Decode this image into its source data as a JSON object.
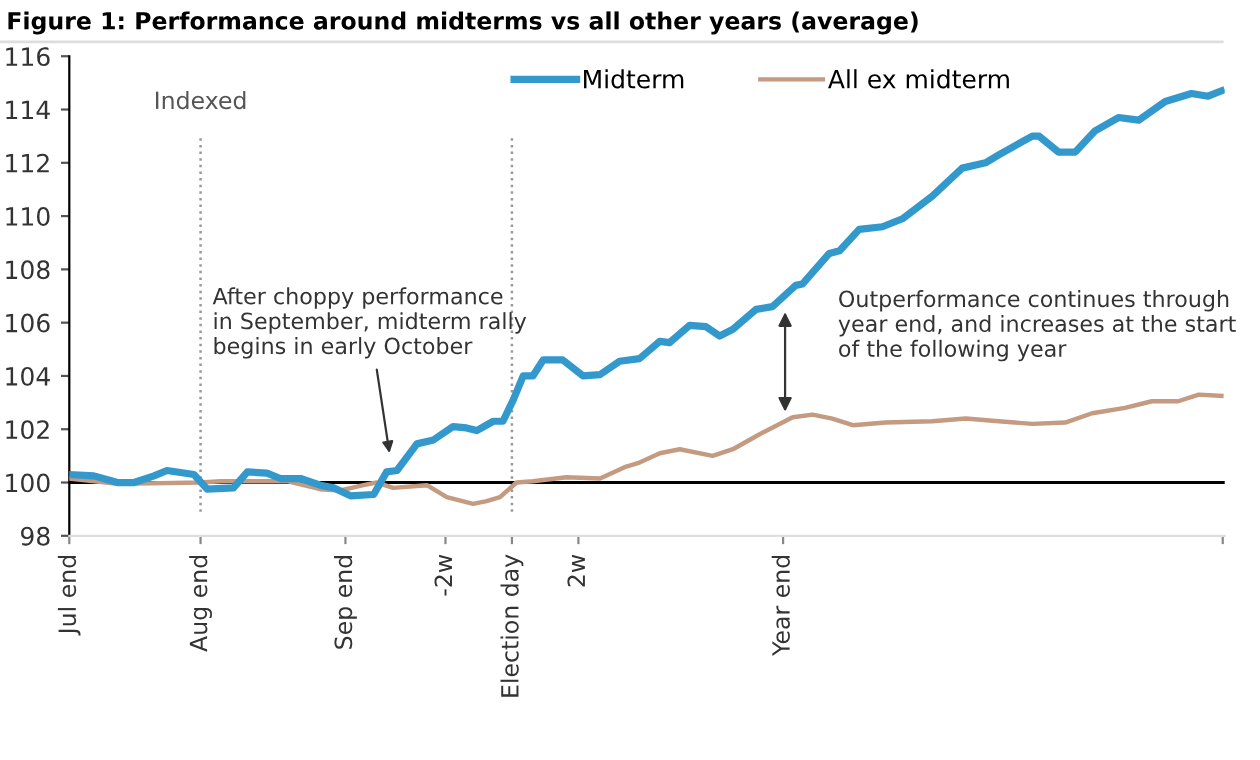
{
  "chart_data": {
    "type": "line",
    "title": "Figure 1: Performance around midterms vs all other years (average)",
    "x": [
      -13.32,
      -12.58,
      -11.87,
      -11.37,
      -10.77,
      -10.38,
      -9.57,
      -9.17,
      -8.38,
      -7.96,
      -7.37,
      -6.97,
      -6.36,
      -5.77,
      -5.37,
      -4.86,
      -4.16,
      -3.77,
      -3.46,
      -2.86,
      -2.36,
      -1.77,
      -1.37,
      -1.06,
      -0.56,
      -0.27,
      0.04,
      0.34,
      0.63,
      0.94,
      1.53,
      2.14,
      2.65,
      3.24,
      3.84,
      4.45,
      4.74,
      5.35,
      5.84,
      6.25,
      6.65,
      7.35,
      7.84,
      8.54,
      8.74,
      9.55,
      9.86,
      10.45,
      11.15,
      11.75,
      12.65,
      13.55,
      14.25,
      14.65,
      15.66,
      15.86,
      16.45,
      16.95,
      17.55,
      18.25,
      18.86,
      19.66,
      20.45,
      20.95,
      21.35
    ],
    "series": [
      {
        "name": "Midterm",
        "color": "#3399cc",
        "values": [
          100.3,
          100.25,
          100,
          100,
          100.25,
          100.45,
          100.3,
          99.75,
          99.8,
          100.4,
          100.35,
          100.15,
          100.15,
          99.9,
          99.8,
          99.5,
          99.55,
          100.4,
          100.45,
          101.45,
          101.6,
          102.1,
          102.05,
          101.95,
          102.3,
          102.3,
          103.1,
          104,
          104,
          104.6,
          104.6,
          104,
          104.05,
          104.55,
          104.65,
          105.3,
          105.25,
          105.9,
          105.85,
          105.5,
          105.75,
          106.5,
          106.6,
          107.4,
          107.45,
          108.6,
          108.7,
          109.5,
          109.6,
          109.9,
          110.75,
          111.8,
          112,
          112.3,
          113,
          113,
          112.4,
          112.4,
          113.2,
          113.7,
          113.6,
          114.3,
          114.6,
          114.5,
          114.7
        ]
      },
      {
        "name": "All ex midterm",
        "color": "#c49a80",
        "x": [
          -13.32,
          -11.87,
          -9.37,
          -8.77,
          -6.77,
          -5.77,
          -5.17,
          -4.47,
          -4.07,
          -3.57,
          -2.56,
          -1.96,
          -1.17,
          -0.76,
          -0.36,
          0.14,
          0.63,
          1.64,
          2.65,
          3.44,
          3.84,
          4.45,
          5.05,
          6.04,
          6.65,
          7.44,
          8.45,
          9.05,
          9.64,
          10.26,
          11.24,
          12.65,
          13.66,
          14.65,
          15.66,
          16.65,
          17.46,
          18.45,
          19.26,
          20.05,
          20.67,
          21.35
        ],
        "values": [
          100.15,
          99.95,
          100,
          100.05,
          100.05,
          99.75,
          99.7,
          99.9,
          100,
          99.8,
          99.9,
          99.45,
          99.2,
          99.3,
          99.45,
          100,
          100.05,
          100.2,
          100.15,
          100.6,
          100.75,
          101.1,
          101.25,
          101,
          101.25,
          101.8,
          102.45,
          102.55,
          102.4,
          102.15,
          102.25,
          102.3,
          102.4,
          102.3,
          102.2,
          102.25,
          102.6,
          102.8,
          103.05,
          103.05,
          103.3,
          103.25
        ]
      }
    ],
    "xlim": [
      -13.32,
      21.45
    ],
    "ylim": [
      98,
      116
    ],
    "xticks": [
      {
        "value": -13.32,
        "label": "Jul end"
      },
      {
        "value": -9.37,
        "label": "Aug end"
      },
      {
        "value": -5.01,
        "label": "Sep end"
      },
      {
        "value": -2,
        "label": "-2w"
      },
      {
        "value": 0,
        "label": "Election day"
      },
      {
        "value": 2,
        "label": "2w"
      },
      {
        "value": 8.16,
        "label": "Year end"
      },
      {
        "value": 21.39,
        "label": null
      }
    ],
    "yticks": [
      98,
      100,
      102,
      104,
      106,
      108,
      110,
      112,
      114,
      116
    ],
    "ref_lines": [
      {
        "axis": "x",
        "value": -9.37,
        "label": "Indexed",
        "color": "#999999",
        "line_style": "dotted"
      },
      {
        "axis": "x",
        "value": 0,
        "color": "#999999",
        "line_style": "dotted"
      },
      {
        "axis": "y",
        "value": 100,
        "color": "#000000",
        "line_style": "solid"
      }
    ],
    "annotations": [
      {
        "text": "After choppy performance\nin September, midterm rally\nbegins in early October",
        "x": -3.66,
        "y": 100.9
      },
      {
        "text": "Outperformance continues through\nyear end, and increases at the start\nof the following year",
        "x": 8.22,
        "y": 106.6
      }
    ],
    "legend": "top",
    "grid": false,
    "marker": "none",
    "line_style": "solid"
  }
}
